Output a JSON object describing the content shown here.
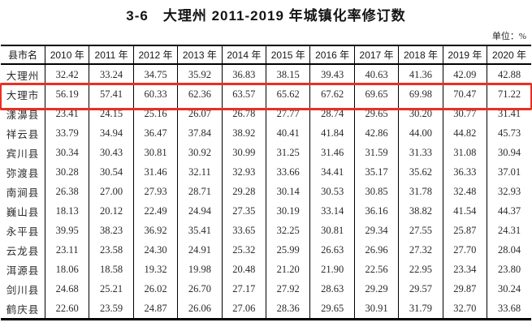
{
  "title": "3-6　大理州 2011-2019 年城镇化率修订数",
  "unit_label": "单位：%",
  "highlight_color": "#ea2f23",
  "table": {
    "columns": [
      "县市名",
      "2010 年",
      "2011 年",
      "2012 年",
      "2013 年",
      "2014 年",
      "2015 年",
      "2016 年",
      "2017 年",
      "2018 年",
      "2019 年",
      "2020 年"
    ],
    "highlighted_row": "大理市",
    "rows": [
      {
        "name": "大理州",
        "highlighted": false,
        "values": [
          "32.42",
          "33.24",
          "34.75",
          "35.92",
          "36.83",
          "38.15",
          "39.43",
          "40.63",
          "41.36",
          "42.09",
          "42.88"
        ]
      },
      {
        "name": "大理市",
        "highlighted": true,
        "values": [
          "56.19",
          "57.41",
          "60.33",
          "62.36",
          "63.57",
          "65.62",
          "67.62",
          "69.65",
          "69.98",
          "70.47",
          "71.22"
        ]
      },
      {
        "name": "漾濞县",
        "highlighted": false,
        "values": [
          "23.41",
          "24.15",
          "25.16",
          "26.07",
          "26.78",
          "27.77",
          "28.74",
          "29.65",
          "30.20",
          "30.77",
          "31.41"
        ]
      },
      {
        "name": "祥云县",
        "highlighted": false,
        "values": [
          "33.79",
          "34.94",
          "36.47",
          "37.84",
          "38.92",
          "40.41",
          "41.84",
          "42.86",
          "44.00",
          "44.82",
          "45.73"
        ]
      },
      {
        "name": "宾川县",
        "highlighted": false,
        "values": [
          "30.34",
          "30.43",
          "30.81",
          "30.92",
          "30.99",
          "31.25",
          "31.46",
          "31.59",
          "31.33",
          "31.08",
          "30.94"
        ]
      },
      {
        "name": "弥渡县",
        "highlighted": false,
        "values": [
          "30.28",
          "30.54",
          "31.46",
          "32.11",
          "32.93",
          "33.66",
          "34.41",
          "35.17",
          "35.62",
          "36.33",
          "37.01"
        ]
      },
      {
        "name": "南涧县",
        "highlighted": false,
        "values": [
          "26.38",
          "27.00",
          "27.93",
          "28.71",
          "29.28",
          "30.14",
          "30.53",
          "30.85",
          "31.78",
          "32.48",
          "32.93"
        ]
      },
      {
        "name": "巍山县",
        "highlighted": false,
        "values": [
          "18.13",
          "20.12",
          "22.49",
          "24.94",
          "27.35",
          "30.19",
          "33.14",
          "36.16",
          "38.82",
          "41.54",
          "44.37"
        ]
      },
      {
        "name": "永平县",
        "highlighted": false,
        "values": [
          "39.95",
          "38.23",
          "36.92",
          "35.41",
          "33.65",
          "32.25",
          "30.81",
          "29.34",
          "27.55",
          "25.87",
          "24.31"
        ]
      },
      {
        "name": "云龙县",
        "highlighted": false,
        "values": [
          "23.11",
          "23.58",
          "24.30",
          "24.91",
          "25.32",
          "25.99",
          "26.63",
          "26.96",
          "27.32",
          "27.70",
          "28.04"
        ]
      },
      {
        "name": "洱源县",
        "highlighted": false,
        "values": [
          "18.06",
          "18.58",
          "19.32",
          "19.98",
          "20.48",
          "21.20",
          "21.90",
          "22.56",
          "22.95",
          "23.34",
          "23.80"
        ]
      },
      {
        "name": "剑川县",
        "highlighted": false,
        "values": [
          "24.68",
          "25.21",
          "26.02",
          "26.70",
          "27.17",
          "27.92",
          "28.63",
          "29.29",
          "29.57",
          "29.87",
          "30.24"
        ]
      },
      {
        "name": "鹤庆县",
        "highlighted": false,
        "values": [
          "22.60",
          "23.59",
          "24.87",
          "26.06",
          "27.06",
          "28.36",
          "29.65",
          "30.91",
          "31.79",
          "32.70",
          "33.68"
        ]
      }
    ]
  }
}
